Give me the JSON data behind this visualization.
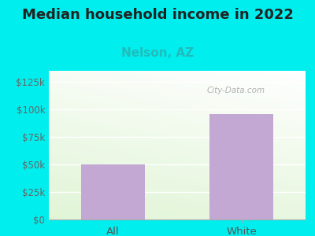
{
  "title": "Median household income in 2022",
  "subtitle": "Nelson, AZ",
  "categories": [
    "All",
    "White"
  ],
  "values": [
    50000,
    96000
  ],
  "bar_color": "#c4a8d4",
  "title_fontsize": 13,
  "subtitle_fontsize": 11,
  "subtitle_color": "#22bbbb",
  "tick_label_fontsize": 8.5,
  "xlabel_fontsize": 9.5,
  "ylim": [
    0,
    135000
  ],
  "yticks": [
    0,
    25000,
    50000,
    75000,
    100000,
    125000
  ],
  "ytick_labels": [
    "$0",
    "$25k",
    "$50k",
    "$75k",
    "$100k",
    "$125k"
  ],
  "bg_outer": "#00eeee",
  "watermark": "City-Data.com",
  "bar_width": 0.5
}
